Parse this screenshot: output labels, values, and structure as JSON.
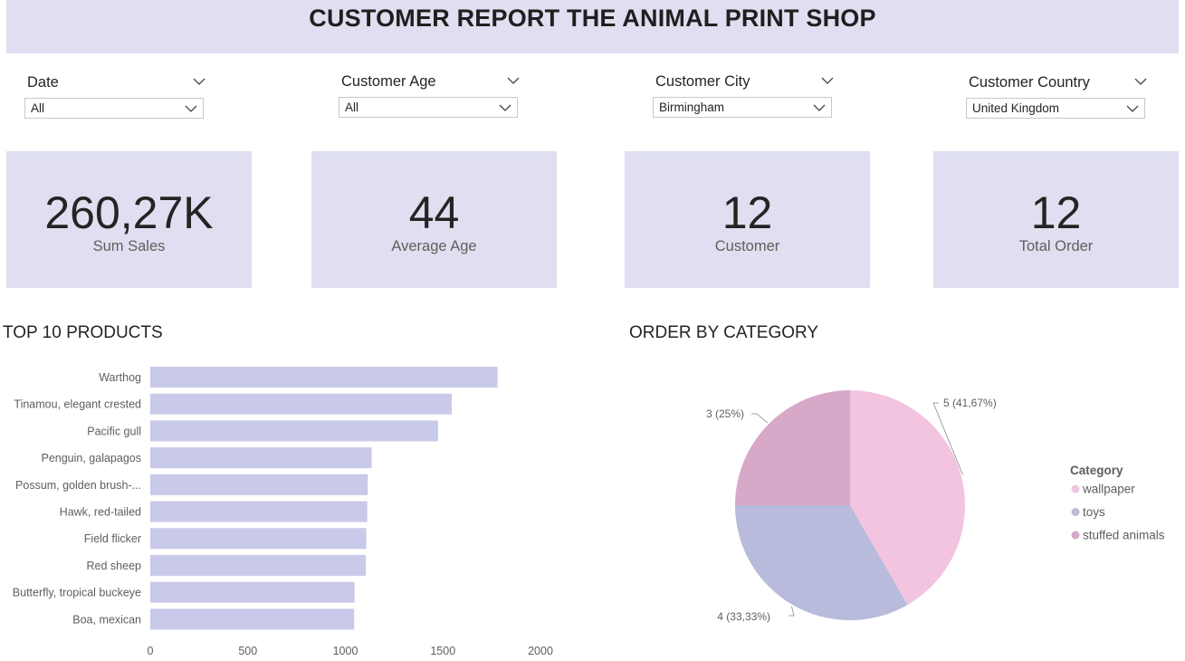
{
  "header": {
    "title": "CUSTOMER REPORT THE ANIMAL PRINT SHOP"
  },
  "filters": [
    {
      "label": "Date",
      "value": "All"
    },
    {
      "label": "Customer Age",
      "value": "All"
    },
    {
      "label": "Customer City",
      "value": "Birmingham"
    },
    {
      "label": "Customer Country",
      "value": "United Kingdom"
    }
  ],
  "kpis": [
    {
      "value": "260,27K",
      "label": "Sum Sales"
    },
    {
      "value": "44",
      "label": "Average Age"
    },
    {
      "value": "12",
      "label": "Customer"
    },
    {
      "value": "12",
      "label": "Total Order"
    }
  ],
  "colors": {
    "card_bg": "#dfdff1",
    "bar": "#c9c9e9",
    "pie_wallpaper": "#f2c4e0",
    "pie_toys": "#b8bbdb",
    "pie_stuffed": "#d8a8c8"
  },
  "chart_data": [
    {
      "type": "bar",
      "orientation": "horizontal",
      "title": "TOP 10 PRODUCTS",
      "categories": [
        "Warthog",
        "Tinamou, elegant crested",
        "Pacific gull",
        "Penguin, galapagos",
        "Possum, golden brush-...",
        "Hawk, red-tailed",
        "Field flicker",
        "Red sheep",
        "Butterfly, tropical buckeye",
        "Boa, mexican"
      ],
      "values": [
        1780,
        1545,
        1475,
        1135,
        1115,
        1112,
        1107,
        1105,
        1047,
        1045
      ],
      "xlim": [
        0,
        2000
      ],
      "xticks": [
        "0",
        "500",
        "1000",
        "1500",
        "2000"
      ],
      "grid": false
    },
    {
      "type": "pie",
      "title": "ORDER BY CATEGORY",
      "legend_title": "Category",
      "legend_position": "right",
      "slices": [
        {
          "name": "wallpaper",
          "value": 5,
          "label": "5 (41,67%)"
        },
        {
          "name": "toys",
          "value": 4,
          "label": "4 (33,33%)"
        },
        {
          "name": "stuffed animals",
          "value": 3,
          "label": "3 (25%)"
        }
      ]
    }
  ]
}
